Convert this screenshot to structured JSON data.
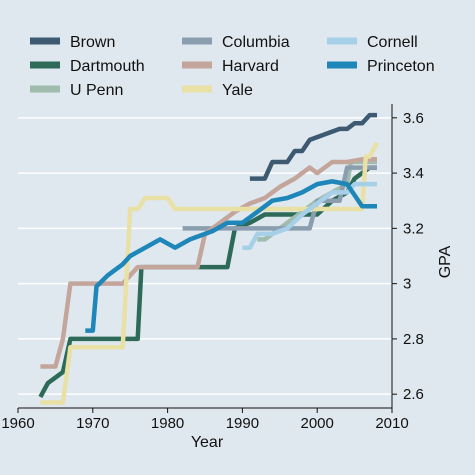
{
  "chart_data": {
    "type": "line",
    "title": "",
    "xlabel": "Year",
    "ylabel": "GPA",
    "xlim": [
      1960,
      2010
    ],
    "ylim": [
      2.55,
      3.65
    ],
    "x_ticks": [
      1960,
      1970,
      1980,
      1990,
      2000,
      2010
    ],
    "x_tick_labels": [
      "1960",
      "1970",
      "1980",
      "1990",
      "2000",
      "2010"
    ],
    "y_ticks": [
      2.6,
      2.8,
      3.0,
      3.2,
      3.4,
      3.6
    ],
    "y_tick_labels": [
      "2.6",
      "2.8",
      "3",
      "3.2",
      "3.4",
      "3.6"
    ],
    "y_axis_position": "right",
    "grid": "horizontal",
    "legend_position": "top",
    "colors": {
      "background": "#dfe8ee",
      "grid": "#ffffff"
    },
    "series": [
      {
        "name": "Brown",
        "color": "#3d5a72",
        "points": [
          [
            1991,
            3.38
          ],
          [
            1993,
            3.38
          ],
          [
            1994,
            3.44
          ],
          [
            1996,
            3.44
          ],
          [
            1997,
            3.48
          ],
          [
            1998,
            3.48
          ],
          [
            1999,
            3.52
          ],
          [
            2001,
            3.54
          ],
          [
            2003,
            3.56
          ],
          [
            2004,
            3.56
          ],
          [
            2005,
            3.58
          ],
          [
            2006,
            3.58
          ],
          [
            2007,
            3.61
          ],
          [
            2008,
            3.61
          ]
        ]
      },
      {
        "name": "Dartmouth",
        "color": "#2e6a58",
        "points": [
          [
            1963,
            2.59
          ],
          [
            1964,
            2.64
          ],
          [
            1966,
            2.68
          ],
          [
            1967,
            2.8
          ],
          [
            1975,
            2.8
          ],
          [
            1976,
            2.8
          ],
          [
            1976.5,
            3.06
          ],
          [
            1988,
            3.06
          ],
          [
            1989,
            3.2
          ],
          [
            1991,
            3.22
          ],
          [
            1993,
            3.25
          ],
          [
            2000,
            3.25
          ],
          [
            2002,
            3.3
          ],
          [
            2004,
            3.33
          ],
          [
            2005,
            3.38
          ],
          [
            2006,
            3.4
          ],
          [
            2007,
            3.42
          ],
          [
            2008,
            3.42
          ]
        ]
      },
      {
        "name": "U Penn",
        "color": "#9fbcad",
        "points": [
          [
            1992,
            3.16
          ],
          [
            1993,
            3.16
          ],
          [
            1994,
            3.18
          ],
          [
            1996,
            3.22
          ],
          [
            1998,
            3.26
          ],
          [
            2000,
            3.3
          ],
          [
            2002,
            3.33
          ],
          [
            2004,
            3.36
          ],
          [
            2004.5,
            3.44
          ],
          [
            2008,
            3.44
          ]
        ]
      },
      {
        "name": "Columbia",
        "color": "#8a9eb0",
        "points": [
          [
            1982,
            3.2
          ],
          [
            1999,
            3.2
          ],
          [
            2000,
            3.3
          ],
          [
            2003,
            3.3
          ],
          [
            2004,
            3.42
          ],
          [
            2008,
            3.42
          ]
        ]
      },
      {
        "name": "Harvard",
        "color": "#c4a59c",
        "points": [
          [
            1963,
            2.7
          ],
          [
            1965,
            2.7
          ],
          [
            1966,
            2.8
          ],
          [
            1967,
            3.0
          ],
          [
            1971,
            3.0
          ],
          [
            1974,
            3.0
          ],
          [
            1976,
            3.06
          ],
          [
            1984,
            3.06
          ],
          [
            1985,
            3.18
          ],
          [
            1987,
            3.22
          ],
          [
            1989,
            3.26
          ],
          [
            1991,
            3.29
          ],
          [
            1993,
            3.31
          ],
          [
            1995,
            3.35
          ],
          [
            1997,
            3.38
          ],
          [
            1999,
            3.42
          ],
          [
            2000,
            3.4
          ],
          [
            2002,
            3.44
          ],
          [
            2004,
            3.44
          ],
          [
            2006,
            3.45
          ],
          [
            2008,
            3.45
          ]
        ]
      },
      {
        "name": "Yale",
        "color": "#e8e0a4",
        "points": [
          [
            1963,
            2.57
          ],
          [
            1966,
            2.57
          ],
          [
            1967,
            2.77
          ],
          [
            1974,
            2.77
          ],
          [
            1975,
            3.27
          ],
          [
            1976,
            3.27
          ],
          [
            1977,
            3.31
          ],
          [
            1980,
            3.31
          ],
          [
            1981,
            3.27
          ],
          [
            2006,
            3.27
          ],
          [
            2006.5,
            3.46
          ],
          [
            2007,
            3.46
          ],
          [
            2008,
            3.51
          ]
        ]
      },
      {
        "name": "Cornell",
        "color": "#a6cfe8",
        "points": [
          [
            1990,
            3.13
          ],
          [
            1991,
            3.13
          ],
          [
            1992,
            3.18
          ],
          [
            1994,
            3.18
          ],
          [
            1996,
            3.2
          ],
          [
            1998,
            3.25
          ],
          [
            2000,
            3.29
          ],
          [
            2002,
            3.33
          ],
          [
            2004,
            3.33
          ],
          [
            2005,
            3.36
          ],
          [
            2008,
            3.36
          ]
        ]
      },
      {
        "name": "Princeton",
        "color": "#1e86b8",
        "points": [
          [
            1969,
            2.83
          ],
          [
            1970,
            2.83
          ],
          [
            1970.5,
            2.99
          ],
          [
            1972,
            3.03
          ],
          [
            1974,
            3.07
          ],
          [
            1975,
            3.1
          ],
          [
            1977,
            3.13
          ],
          [
            1979,
            3.16
          ],
          [
            1981,
            3.13
          ],
          [
            1983,
            3.16
          ],
          [
            1986,
            3.19
          ],
          [
            1988,
            3.22
          ],
          [
            1990,
            3.22
          ],
          [
            1992,
            3.26
          ],
          [
            1994,
            3.3
          ],
          [
            1996,
            3.31
          ],
          [
            1998,
            3.33
          ],
          [
            2000,
            3.36
          ],
          [
            2002,
            3.37
          ],
          [
            2004,
            3.36
          ],
          [
            2006,
            3.28
          ],
          [
            2007,
            3.28
          ],
          [
            2008,
            3.28
          ]
        ]
      }
    ]
  }
}
